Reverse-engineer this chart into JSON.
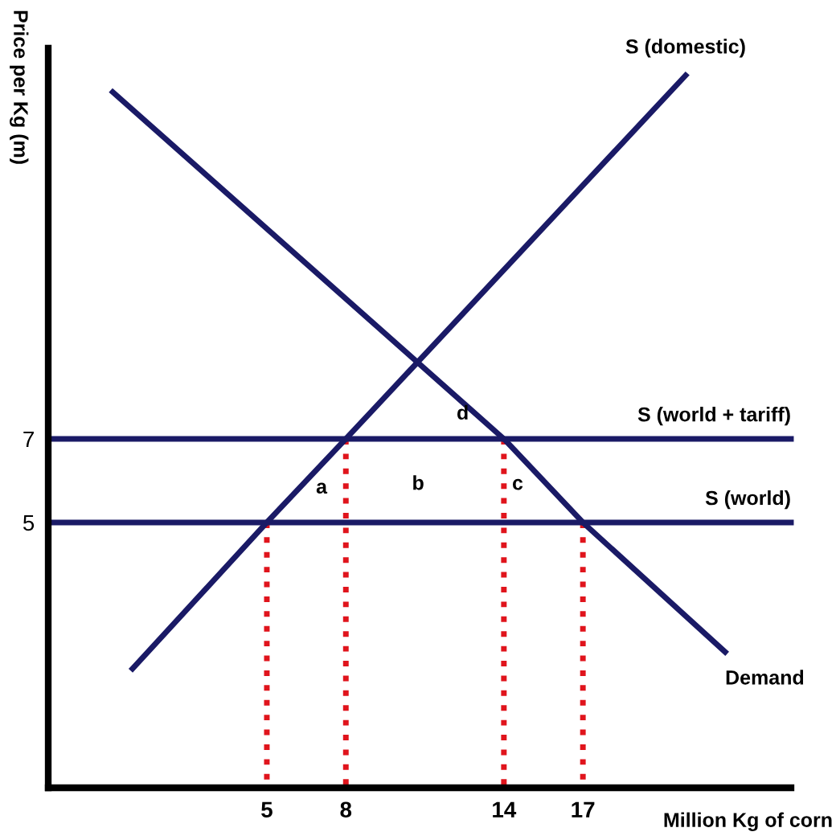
{
  "chart_data": {
    "type": "line",
    "xlabel": "Million Kg of corn",
    "ylabel": "Price per Kg (m)",
    "xlim": [
      -3.3,
      24.9
    ],
    "ylim": [
      -1.35,
      16.35
    ],
    "xticks": [
      5,
      8,
      14,
      17
    ],
    "yticks": [
      5,
      7
    ],
    "grid": false,
    "legend": false,
    "marker": "none",
    "series": [
      {
        "name": "S (domestic)",
        "color": "#1a1a66",
        "x": [
          -0.1,
          5,
          8,
          20.9
        ],
        "values": [
          1.5,
          5,
          7,
          15.7
        ]
      },
      {
        "name": "Demand",
        "color": "#1a1a66",
        "x": [
          -0.85,
          14,
          17,
          22.4
        ],
        "values": [
          15.3,
          7,
          5,
          1.9
        ]
      },
      {
        "name": "S (world + tariff)",
        "color": "#1a1a66",
        "x": [
          -3.3,
          24.9
        ],
        "values": [
          7,
          7
        ]
      },
      {
        "name": "S (world)",
        "color": "#1a1a66",
        "x": [
          -3.3,
          24.9
        ],
        "values": [
          5,
          5
        ]
      },
      {
        "color": "#e0141c",
        "line_style": "dotted",
        "x": [
          5,
          5
        ],
        "values": [
          -1.35,
          5
        ]
      },
      {
        "color": "#e0141c",
        "line_style": "dotted",
        "x": [
          8,
          8
        ],
        "values": [
          -1.35,
          7
        ]
      },
      {
        "color": "#e0141c",
        "line_style": "dotted",
        "x": [
          14,
          14
        ],
        "values": [
          -1.35,
          7
        ]
      },
      {
        "color": "#e0141c",
        "line_style": "dotted",
        "x": [
          17,
          17
        ],
        "values": [
          -1.35,
          5
        ]
      }
    ],
    "annotations": [
      "a",
      "b",
      "c",
      "d"
    ]
  }
}
